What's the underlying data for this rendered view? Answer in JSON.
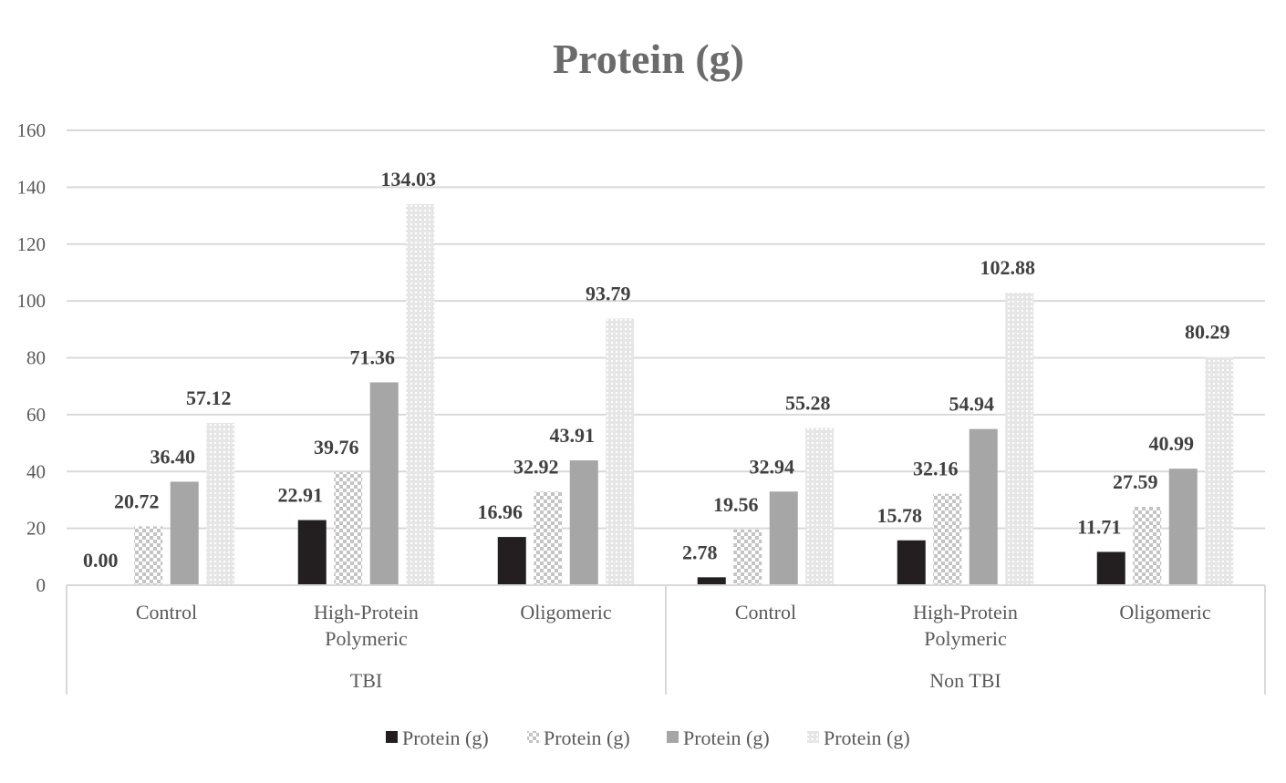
{
  "chart_data": {
    "type": "bar",
    "title": "Protein (g)",
    "ylim": [
      0,
      160
    ],
    "yticks": [
      "0",
      "20",
      "40",
      "60",
      "80",
      "100",
      "120",
      "140",
      "160"
    ],
    "grid": true,
    "legend_position": "bottom",
    "groups": [
      {
        "label": "TBI",
        "categories": [
          "Control",
          "High-Protein Polymeric",
          "Oligomeric"
        ]
      },
      {
        "label": "Non TBI",
        "categories": [
          "Control",
          "High-Protein Polymeric",
          "Oligomeric"
        ]
      }
    ],
    "category_lines": [
      [
        "Control"
      ],
      [
        "High-Protein",
        "Polymeric"
      ],
      [
        "Oligomeric"
      ],
      [
        "Control"
      ],
      [
        "High-Protein",
        "Polymeric"
      ],
      [
        "Oligomeric"
      ]
    ],
    "series": [
      {
        "name": "Protein (g)",
        "pattern": "solid-dark",
        "color": "#231f20",
        "values": [
          0.0,
          22.91,
          16.96,
          2.78,
          15.78,
          11.71
        ],
        "labels": [
          "0.00",
          "22.91",
          "16.96",
          "2.78",
          "15.78",
          "11.71"
        ]
      },
      {
        "name": "Protein (g)",
        "pattern": "checker",
        "color": "#cfcfcf",
        "values": [
          20.72,
          39.76,
          32.92,
          19.56,
          32.16,
          27.59
        ],
        "labels": [
          "20.72",
          "39.76",
          "32.92",
          "19.56",
          "32.16",
          "27.59"
        ]
      },
      {
        "name": "Protein (g)",
        "pattern": "solid-gray",
        "color": "#a6a6a6",
        "values": [
          36.4,
          71.36,
          43.91,
          32.94,
          54.94,
          40.99
        ],
        "labels": [
          "36.40",
          "71.36",
          "43.91",
          "32.94",
          "54.94",
          "40.99"
        ]
      },
      {
        "name": "Protein (g)",
        "pattern": "dots",
        "color": "#d9d9d9",
        "values": [
          57.12,
          134.03,
          93.79,
          55.28,
          102.88,
          80.29
        ],
        "labels": [
          "57.12",
          "134.03",
          "93.79",
          "55.28",
          "102.88",
          "80.29"
        ]
      }
    ]
  }
}
